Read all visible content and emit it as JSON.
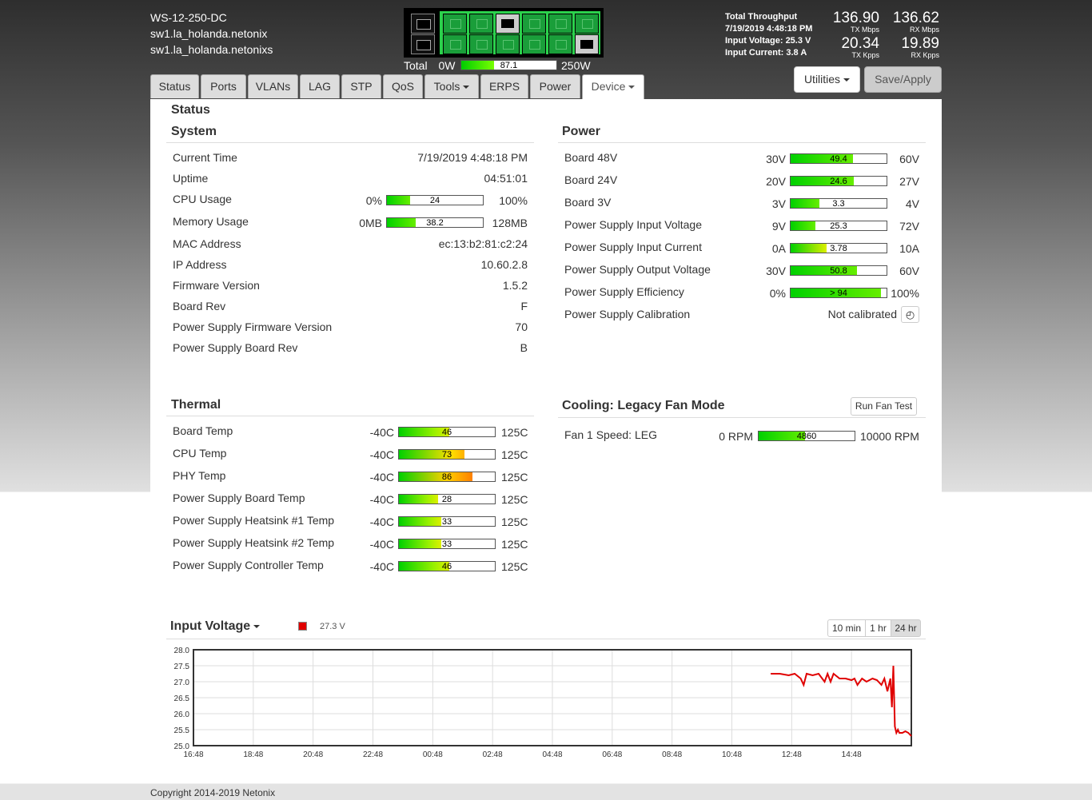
{
  "device": {
    "model": "WS-12-250-DC",
    "hostname": "sw1.la_holanda.netonix",
    "location": "sw1.la_holanda.netonixs"
  },
  "power_total": {
    "label": "Total",
    "min": "0W",
    "value": 87.1,
    "value_label": "87.1",
    "max": "250W",
    "max_value": 250
  },
  "throughput": {
    "title": "Total Throughput",
    "time": "7/19/2019 4:48:18 PM",
    "input_voltage": "Input Voltage: 25.3 V",
    "input_current": "Input Current: 3.8 A",
    "tx_mbps": "136.90",
    "tx_mbps_label": "TX Mbps",
    "rx_mbps": "136.62",
    "rx_mbps_label": "RX Mbps",
    "tx_kpps": "20.34",
    "tx_kpps_label": "TX Kpps",
    "rx_kpps": "19.89",
    "rx_kpps_label": "RX Kpps"
  },
  "tabs": [
    {
      "label": "Status"
    },
    {
      "label": "Ports"
    },
    {
      "label": "VLANs"
    },
    {
      "label": "LAG"
    },
    {
      "label": "STP"
    },
    {
      "label": "QoS"
    },
    {
      "label": "Tools"
    },
    {
      "label": "ERPS"
    },
    {
      "label": "Power"
    },
    {
      "label": "Device"
    }
  ],
  "buttons": {
    "utilities": "Utilities",
    "save": "Save/Apply",
    "fan_test": "Run Fan Test"
  },
  "page_title": "Status",
  "system": {
    "title": "System",
    "rows": [
      {
        "label": "Current Time",
        "value": "7/19/2019 4:48:18 PM"
      },
      {
        "label": "Uptime",
        "value": "04:51:01"
      },
      {
        "label": "CPU Usage",
        "min": "0%",
        "value": 24,
        "value_label": "24",
        "max": "100%",
        "range": [
          0,
          100
        ]
      },
      {
        "label": "Memory Usage",
        "min": "0MB",
        "value": 38.2,
        "value_label": "38.2",
        "max": "128MB",
        "range": [
          0,
          128
        ]
      },
      {
        "label": "MAC Address",
        "value": "ec:13:b2:81:c2:24"
      },
      {
        "label": "IP Address",
        "value": "10.60.2.8"
      },
      {
        "label": "Firmware Version",
        "value": "1.5.2"
      },
      {
        "label": "Board Rev",
        "value": "F"
      },
      {
        "label": "Power Supply Firmware Version",
        "value": "70"
      },
      {
        "label": "Power Supply Board Rev",
        "value": "B"
      }
    ]
  },
  "power": {
    "title": "Power",
    "rows": [
      {
        "label": "Board 48V",
        "min": "30V",
        "value": 49.4,
        "value_label": "49.4",
        "max": "60V",
        "range": [
          30,
          60
        ]
      },
      {
        "label": "Board 24V",
        "min": "20V",
        "value": 24.6,
        "value_label": "24.6",
        "max": "27V",
        "range": [
          20,
          27
        ]
      },
      {
        "label": "Board 3V",
        "min": "3V",
        "value": 3.3,
        "value_label": "3.3",
        "max": "4V",
        "range": [
          3,
          4
        ]
      },
      {
        "label": "Power Supply Input Voltage",
        "min": "9V",
        "value": 25.3,
        "value_label": "25.3",
        "max": "72V",
        "range": [
          9,
          72
        ]
      },
      {
        "label": "Power Supply Input Current",
        "min": "0A",
        "value": 3.78,
        "value_label": "3.78",
        "max": "10A",
        "range": [
          0,
          10
        ]
      },
      {
        "label": "Power Supply Output Voltage",
        "min": "30V",
        "value": 50.8,
        "value_label": "50.8",
        "max": "60V",
        "range": [
          30,
          60
        ]
      },
      {
        "label": "Power Supply Efficiency",
        "min": "0%",
        "value": 94,
        "value_label": "> 94",
        "max": "100%",
        "range": [
          0,
          100
        ]
      }
    ],
    "calibration": {
      "label": "Power Supply Calibration",
      "value": "Not calibrated"
    }
  },
  "thermal": {
    "title": "Thermal",
    "range": [
      -40,
      125
    ],
    "rows": [
      {
        "label": "Board Temp",
        "min": "-40C",
        "value": 46,
        "value_label": "46",
        "max": "125C"
      },
      {
        "label": "CPU Temp",
        "min": "-40C",
        "value": 73,
        "value_label": "73",
        "max": "125C"
      },
      {
        "label": "PHY Temp",
        "min": "-40C",
        "value": 86,
        "value_label": "86",
        "max": "125C"
      },
      {
        "label": "Power Supply Board Temp",
        "min": "-40C",
        "value": 28,
        "value_label": "28",
        "max": "125C"
      },
      {
        "label": "Power Supply Heatsink #1 Temp",
        "min": "-40C",
        "value": 33,
        "value_label": "33",
        "max": "125C"
      },
      {
        "label": "Power Supply Heatsink #2 Temp",
        "min": "-40C",
        "value": 33,
        "value_label": "33",
        "max": "125C"
      },
      {
        "label": "Power Supply Controller Temp",
        "min": "-40C",
        "value": 46,
        "value_label": "46",
        "max": "125C"
      }
    ]
  },
  "cooling": {
    "title": "Cooling: Legacy Fan Mode",
    "fan": {
      "label": "Fan 1 Speed: LEG",
      "min": "0 RPM",
      "value": 4860,
      "value_label": "4860",
      "max": "10000 RPM",
      "range": [
        0,
        10000
      ]
    }
  },
  "chart_header": {
    "title": "Input Voltage",
    "legend_value": "27.3 V",
    "ranges": [
      "10 min",
      "1 hr",
      "24 hr"
    ],
    "active_range": "24 hr"
  },
  "chart_data": {
    "type": "line",
    "xlabel": "",
    "ylabel": "",
    "x_ticks": [
      "16:48",
      "18:48",
      "20:48",
      "22:48",
      "00:48",
      "02:48",
      "04:48",
      "06:48",
      "08:48",
      "10:48",
      "12:48",
      "14:48"
    ],
    "y_ticks": [
      "28.0",
      "27.5",
      "27.0",
      "26.5",
      "26.0",
      "25.5",
      "25.0"
    ],
    "ylim": [
      25.0,
      28.0
    ],
    "x_range_hours": [
      0,
      24
    ],
    "grid": true,
    "series": [
      {
        "color": "#e00000",
        "x_hours": [
          19.3,
          19.6,
          19.9,
          20.1,
          20.3,
          20.4,
          20.5,
          20.7,
          20.9,
          21.1,
          21.2,
          21.3,
          21.4,
          21.6,
          21.8,
          22.0,
          22.1,
          22.2,
          22.35,
          22.5,
          22.7,
          22.85,
          23.0,
          23.1,
          23.2,
          23.3,
          23.35,
          23.4,
          23.45,
          23.5,
          23.55,
          23.6,
          23.7,
          23.8,
          23.9,
          24.0
        ],
        "values": [
          27.25,
          27.25,
          27.2,
          27.25,
          27.1,
          26.9,
          27.25,
          27.2,
          27.25,
          27.0,
          27.25,
          27.0,
          27.25,
          27.1,
          27.1,
          27.05,
          27.1,
          26.9,
          27.1,
          27.0,
          27.1,
          27.05,
          26.9,
          27.1,
          26.7,
          27.1,
          26.2,
          27.5,
          25.6,
          25.4,
          25.5,
          25.4,
          25.4,
          25.45,
          25.4,
          25.3
        ]
      }
    ]
  },
  "footer": {
    "copyright": "Copyright 2014-2019 Netonix"
  }
}
